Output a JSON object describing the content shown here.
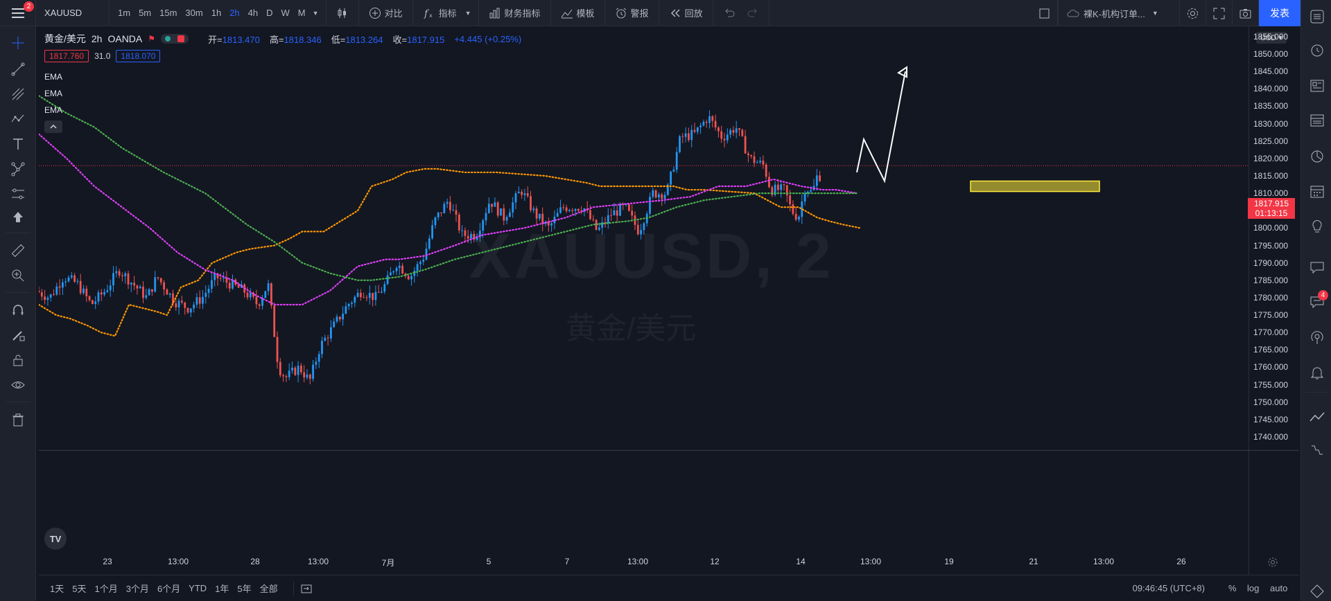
{
  "topbar": {
    "notification_count": "2",
    "symbol": "XAUUSD",
    "intervals": [
      "1m",
      "5m",
      "15m",
      "30m",
      "1h",
      "2h",
      "4h",
      "D",
      "W",
      "M"
    ],
    "active_interval": "2h",
    "compare_label": "对比",
    "indicators_label": "指标",
    "financials_label": "财务指标",
    "templates_label": "模板",
    "alert_label": "警报",
    "replay_label": "回放",
    "layout_name": "裸K-机构订单...",
    "publish_label": "发表"
  },
  "legend": {
    "title": "黄金/美元",
    "interval": "2h",
    "broker": "OANDA",
    "open_label": "开=",
    "open": "1813.470",
    "high_label": "高=",
    "high": "1818.346",
    "low_label": "低=",
    "low": "1813.264",
    "close_label": "收=",
    "close": "1817.915",
    "change": "+4.445 (+0.25%)",
    "bid": "1817.760",
    "spread": "31.0",
    "ask": "1818.070",
    "indicators": [
      "EMA",
      "EMA",
      "EMA"
    ]
  },
  "watermark": {
    "symbol": "XAUUSD, 2",
    "description": "黄金/美元"
  },
  "price_axis": {
    "currency": "USD",
    "ticks": [
      "1855.000",
      "1850.000",
      "1845.000",
      "1840.000",
      "1835.000",
      "1830.000",
      "1825.000",
      "1820.000",
      "1815.000",
      "1810.000",
      "1805.000",
      "1800.000",
      "1795.000",
      "1790.000",
      "1785.000",
      "1780.000",
      "1775.000",
      "1770.000",
      "1765.000",
      "1760.000",
      "1755.000",
      "1750.000",
      "1745.000",
      "1740.000"
    ],
    "last_price": "1817.915",
    "countdown": "01:13:15"
  },
  "time_axis": {
    "ticks": [
      "23",
      "13:00",
      "28",
      "13:00",
      "7月",
      "5",
      "7",
      "13:00",
      "12",
      "14",
      "13:00",
      "19",
      "21",
      "13:00",
      "26"
    ]
  },
  "bottombar": {
    "ranges": [
      "1天",
      "5天",
      "1个月",
      "3个月",
      "6个月",
      "YTD",
      "1年",
      "5年",
      "全部"
    ],
    "clock": "09:46:45 (UTC+8)",
    "percent_label": "%",
    "log_label": "log",
    "auto_label": "auto"
  },
  "rightbar": {
    "badge_count": "4"
  },
  "colors": {
    "up": "#2196f3",
    "down": "#ef5350",
    "ema_fast": "#ff9800",
    "ema_mid": "#e040fb",
    "ema_slow": "#4caf50",
    "zone": "#ffeb3b",
    "accent": "#2962ff"
  },
  "chart_data": {
    "type": "candlestick",
    "symbol": "XAUUSD",
    "interval": "2h",
    "ylim": [
      1737,
      1856
    ],
    "current_price": 1817.915,
    "price_line": 1817.915,
    "ohlc": {
      "open": 1813.47,
      "high": 1818.346,
      "low": 1813.264,
      "close": 1817.915
    },
    "series": [
      {
        "name": "EMA",
        "role": "fast",
        "color": "#ff9800",
        "x": [
          0,
          25,
          45,
          70,
          90,
          110,
          130,
          150,
          170,
          185,
          205,
          230,
          250,
          285,
          305,
          340,
          362,
          380,
          393,
          411,
          460,
          480,
          510,
          530,
          556,
          575,
          615,
          660,
          730,
          760,
          790,
          810,
          870,
          916,
          935,
          960,
          1032,
          1070,
          1096,
          1123,
          1140,
          1160,
          1185
        ],
        "y": [
          1778,
          1775,
          1774,
          1772,
          1770,
          1769,
          1778,
          1777,
          1776,
          1775,
          1783,
          1785,
          1790,
          1793,
          1794,
          1795,
          1797,
          1799,
          1799,
          1799,
          1805,
          1812,
          1814,
          1816,
          1817,
          1817,
          1816,
          1816,
          1815,
          1814,
          1813,
          1812,
          1812,
          1812,
          1811,
          1811,
          1810,
          1806,
          1806,
          1803,
          1802,
          1801,
          1800
        ]
      },
      {
        "name": "EMA",
        "role": "mid",
        "color": "#e040fb",
        "x": [
          0,
          40,
          80,
          120,
          160,
          200,
          240,
          280,
          310,
          340,
          380,
          420,
          460,
          500,
          520,
          556,
          600,
          640,
          700,
          760,
          800,
          850,
          900,
          940,
          980,
          1020,
          1060,
          1100,
          1130,
          1150,
          1180
        ],
        "y": [
          1827,
          1820,
          1812,
          1806,
          1800,
          1793,
          1788,
          1785,
          1781,
          1778,
          1778,
          1782,
          1789,
          1791,
          1791,
          1792,
          1795,
          1798,
          1800,
          1803,
          1806,
          1807,
          1808,
          1809,
          1812,
          1812,
          1814,
          1812,
          1811,
          1811,
          1810
        ]
      },
      {
        "name": "EMA",
        "role": "slow",
        "color": "#4caf50",
        "x": [
          0,
          40,
          80,
          120,
          180,
          240,
          300,
          340,
          380,
          420,
          460,
          480,
          520,
          556,
          600,
          660,
          720,
          760,
          800,
          850,
          880,
          920,
          960,
          1000,
          1040,
          1080,
          1100,
          1130,
          1150,
          1180
        ],
        "y": [
          1838,
          1833,
          1829,
          1823,
          1816,
          1810,
          1801,
          1796,
          1790,
          1787,
          1785,
          1785,
          1786,
          1788,
          1791,
          1794,
          1797,
          1799,
          1801,
          1802,
          1803,
          1806,
          1808,
          1809,
          1810,
          1810,
          1810,
          1810,
          1810,
          1810
        ]
      }
    ],
    "zone": {
      "price_top": 1813.5,
      "price_bottom": 1810.5,
      "color": "#ffeb3b"
    },
    "projection": {
      "points": [
        [
          1180,
          1816
        ],
        [
          1190,
          1825.5
        ],
        [
          1220,
          1813.5
        ],
        [
          1250,
          1845
        ]
      ]
    }
  }
}
